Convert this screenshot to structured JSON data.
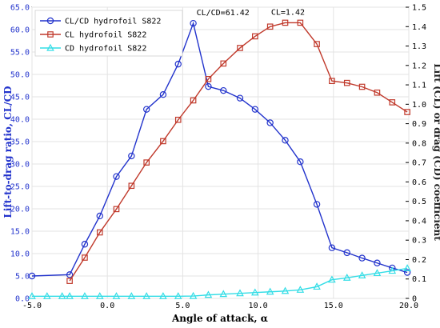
{
  "chart_data": {
    "type": "line",
    "title": "",
    "xlabel": "Angle of attack, α",
    "ylabel_left": "Lift-to-drag ratio, CL/CD",
    "ylabel_right": "Lift (CL) or drag (CD) coefficient",
    "xlim": [
      -5,
      20
    ],
    "ylim_left": [
      0,
      65
    ],
    "ylim_right": [
      0,
      1.5
    ],
    "x_ticks": [
      "-5.0",
      "0.0",
      "5.0",
      "10.0",
      "15.0",
      "20.0"
    ],
    "y_left_ticks": [
      "0.0",
      "5.0",
      "10.0",
      "15.0",
      "20.0",
      "25.0",
      "30.0",
      "35.0",
      "40.0",
      "45.0",
      "50.0",
      "55.0",
      "60.0",
      "65.0"
    ],
    "y_right_ticks": [
      "0",
      "0.1",
      "0.2",
      "0.3",
      "0.4",
      "0.5",
      "0.6",
      "0.7",
      "0.8",
      "0.9",
      "1.0",
      "1.1",
      "1.2",
      "1.3",
      "1.4",
      "1.5"
    ],
    "grid": true,
    "legend_position": "top-left",
    "series": [
      {
        "name": "CL/CD hydrofoil S822",
        "axis": "left",
        "color": "#2233cc",
        "marker": "circle",
        "x": [
          -5,
          -2.5,
          -1.5,
          -0.5,
          0.6,
          1.6,
          2.6,
          3.7,
          4.7,
          5.7,
          6.7,
          7.7,
          8.8,
          9.8,
          10.8,
          11.8,
          12.8,
          13.9,
          14.9,
          15.9,
          16.9,
          17.9,
          18.9,
          19.9
        ],
        "values": [
          5.0,
          5.3,
          12.1,
          18.4,
          27.2,
          31.8,
          42.2,
          45.5,
          52.3,
          61.4,
          47.3,
          46.4,
          44.7,
          42.2,
          39.2,
          35.3,
          30.5,
          21.0,
          11.3,
          10.2,
          9.0,
          7.9,
          6.8,
          5.8
        ]
      },
      {
        "name": "CL hydrofoil S822",
        "axis": "right",
        "color": "#c0392b",
        "marker": "square",
        "x": [
          -2.5,
          -1.5,
          -0.5,
          0.6,
          1.6,
          2.6,
          3.7,
          4.7,
          5.7,
          6.7,
          7.7,
          8.8,
          9.8,
          10.8,
          11.8,
          12.8,
          13.9,
          14.9,
          15.9,
          16.9,
          17.9,
          18.9,
          19.9
        ],
        "values": [
          0.09,
          0.21,
          0.34,
          0.46,
          0.58,
          0.7,
          0.81,
          0.92,
          1.02,
          1.13,
          1.21,
          1.29,
          1.35,
          1.4,
          1.42,
          1.42,
          1.31,
          1.12,
          1.11,
          1.09,
          1.06,
          1.01,
          0.96
        ]
      },
      {
        "name": "CD hydrofoil S822",
        "axis": "right",
        "color": "#33dde6",
        "marker": "triangle",
        "x": [
          -5,
          -4,
          -3,
          -2.5,
          -1.5,
          -0.5,
          0.6,
          1.6,
          2.6,
          3.7,
          4.7,
          5.7,
          6.7,
          7.7,
          8.8,
          9.8,
          10.8,
          11.8,
          12.8,
          13.9,
          14.9,
          15.9,
          16.9,
          17.9,
          18.9,
          19.9
        ],
        "values": [
          0.011,
          0.011,
          0.011,
          0.011,
          0.011,
          0.011,
          0.011,
          0.011,
          0.011,
          0.011,
          0.011,
          0.012,
          0.018,
          0.022,
          0.026,
          0.03,
          0.034,
          0.038,
          0.044,
          0.06,
          0.096,
          0.106,
          0.118,
          0.13,
          0.142,
          0.155
        ]
      }
    ],
    "annotations": [
      {
        "text": "CL/CD=61.42",
        "x": 5.7,
        "axis": "left",
        "y": 61.42
      },
      {
        "text": "CL=1.42",
        "x": 12.3,
        "axis": "right",
        "y": 1.42
      }
    ]
  }
}
